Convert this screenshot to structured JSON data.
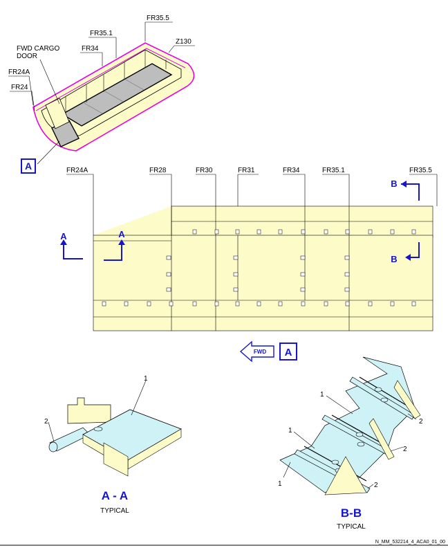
{
  "iso_view": {
    "frame_labels": [
      "FR35.5",
      "FR35.1",
      "FR34",
      "FR24A",
      "FR24",
      "Z130"
    ],
    "door_label_line1": "FWD CARGO",
    "door_label_line2": "DOOR",
    "view_callout": "A"
  },
  "plan_view": {
    "frames": [
      "FR24A",
      "FR28",
      "FR30",
      "FR31",
      "FR34",
      "FR35.1",
      "FR35.5"
    ],
    "section_a": "A",
    "section_b": "B",
    "fwd_arrow_text": "FWD",
    "view_box_letter": "A"
  },
  "details": {
    "aa": {
      "title": "A - A",
      "subtitle": "TYPICAL",
      "callouts": [
        "1",
        "2"
      ]
    },
    "bb": {
      "title": "B-B",
      "subtitle": "TYPICAL",
      "callouts": [
        "1",
        "1",
        "1",
        "2",
        "2",
        "2"
      ]
    }
  },
  "footer": {
    "ref": "N_MM_532214_4_ACA0_01_00"
  },
  "colors": {
    "panel": "#fdfbc8",
    "floor_light": "#cef2f5",
    "outline_magenta": "#e600e6",
    "blue": "#1414d2"
  }
}
